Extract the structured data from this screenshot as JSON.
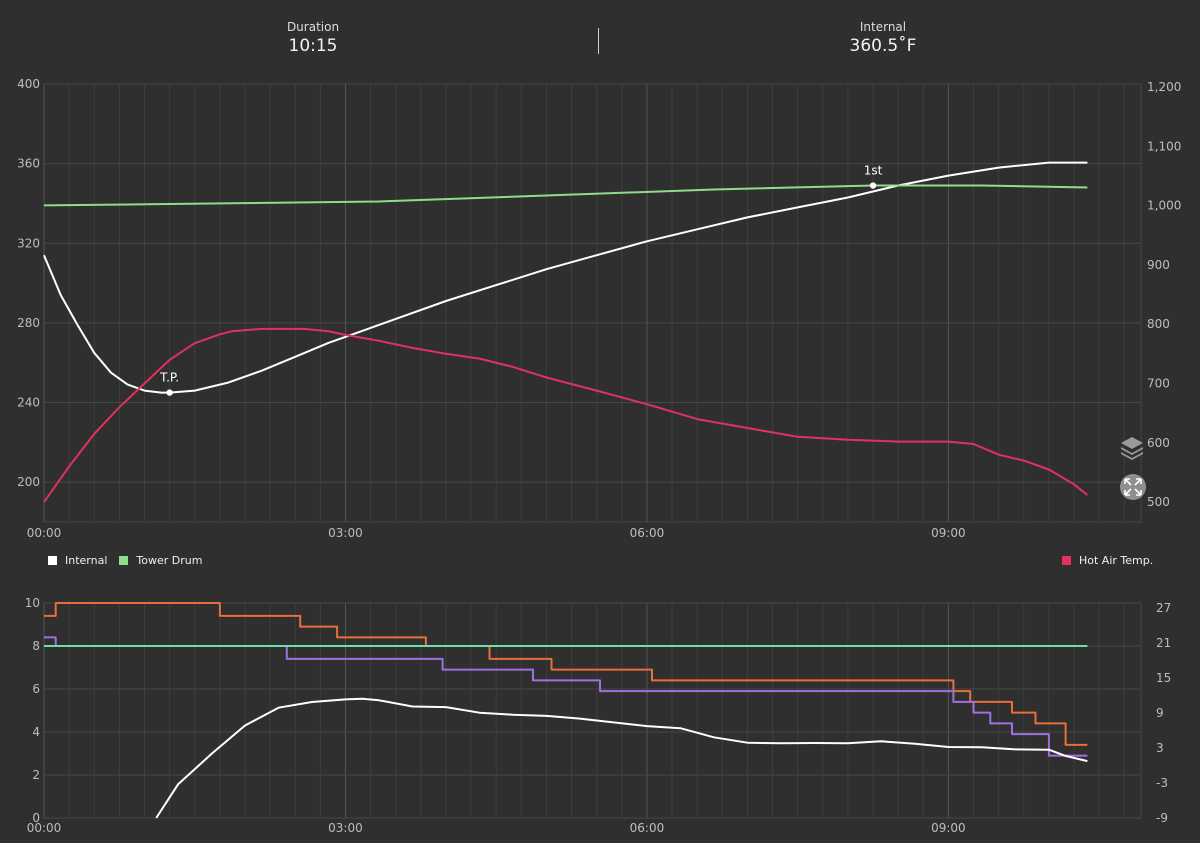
{
  "header": {
    "duration_label": "Duration",
    "duration_value": "10:15",
    "internal_label": "Internal",
    "internal_value": "360.5˚F"
  },
  "controls": {
    "layers_icon": "layers-icon",
    "expand_icon": "expand-icon"
  },
  "chart_data": [
    {
      "type": "line",
      "x_unit": "seconds",
      "x_ticks": [
        "00:00",
        "03:00",
        "06:00",
        "09:00"
      ],
      "xlim": [
        0,
        655
      ],
      "y_left": {
        "ticks": [
          "200",
          "240",
          "280",
          "320",
          "360",
          "400"
        ],
        "ylim": [
          180,
          400
        ]
      },
      "y_right": {
        "ticks": [
          "500",
          "600",
          "700",
          "800",
          "900",
          "1,000",
          "1,100",
          "1,200"
        ],
        "ylim": [
          490,
          1200
        ]
      },
      "grid": true,
      "legend_left": [
        {
          "name": "Internal",
          "color": "#ffffff"
        },
        {
          "name": "Tower Drum",
          "color": "#8fdc8a"
        }
      ],
      "legend_right": [
        {
          "name": "Hot Air Temp.",
          "color": "#e0325f"
        }
      ],
      "series": [
        {
          "name": "Internal",
          "axis": "left",
          "color": "#ffffff",
          "x": [
            0,
            10,
            20,
            30,
            40,
            50,
            60,
            70,
            75,
            90,
            110,
            130,
            150,
            170,
            190,
            210,
            240,
            270,
            300,
            330,
            360,
            390,
            420,
            450,
            480,
            495,
            510,
            540,
            570,
            600,
            623
          ],
          "y": [
            314,
            294,
            279,
            265,
            255,
            249,
            246,
            245,
            245,
            246,
            250,
            256,
            263,
            270,
            276,
            282,
            291,
            299,
            307,
            314,
            321,
            327,
            333,
            338,
            343,
            346,
            349,
            354,
            358,
            360.5,
            360.5
          ]
        },
        {
          "name": "Tower Drum",
          "axis": "left",
          "color": "#8fdc8a",
          "x": [
            0,
            100,
            200,
            300,
            400,
            495,
            560,
            623
          ],
          "y": [
            339,
            340,
            341,
            344,
            347,
            349,
            349,
            348
          ]
        },
        {
          "name": "Hot Air Temp.",
          "axis": "right",
          "color": "#e0325f",
          "x": [
            0,
            15,
            30,
            45,
            60,
            75,
            90,
            105,
            112,
            130,
            155,
            170,
            180,
            200,
            220,
            240,
            260,
            280,
            300,
            330,
            360,
            390,
            420,
            450,
            480,
            510,
            540,
            555,
            570,
            585,
            600,
            615,
            623
          ],
          "y": [
            500,
            560,
            615,
            660,
            700,
            740,
            768,
            783,
            788,
            792,
            792,
            788,
            782,
            772,
            760,
            750,
            742,
            728,
            710,
            688,
            665,
            640,
            625,
            610,
            605,
            602,
            602,
            598,
            580,
            570,
            555,
            530,
            512
          ]
        }
      ],
      "annotations": [
        {
          "label": "T.P.",
          "x": 75,
          "y": 245
        },
        {
          "label": "1st",
          "x": 495,
          "y": 349
        }
      ]
    },
    {
      "type": "line",
      "x_unit": "seconds",
      "x_ticks": [
        "00:00",
        "03:00",
        "06:00",
        "09:00"
      ],
      "xlim": [
        0,
        655
      ],
      "y_left": {
        "ticks": [
          "0",
          "2",
          "4",
          "6",
          "8",
          "10"
        ],
        "ylim": [
          0,
          10
        ]
      },
      "y_right": {
        "ticks": [
          "-9",
          "-3",
          "3",
          "9",
          "15",
          "21",
          "27"
        ],
        "ylim": [
          -9,
          27
        ]
      },
      "grid": true,
      "series": [
        {
          "name": "orange-step",
          "axis": "left",
          "color": "#e86e3a",
          "step": true,
          "x": [
            0,
            7,
            105,
            153,
            175,
            228,
            266,
            303,
            363,
            543,
            553,
            578,
            592,
            610,
            623
          ],
          "y": [
            9.4,
            10,
            9.4,
            8.9,
            8.4,
            8,
            7.4,
            6.9,
            6.4,
            5.9,
            5.4,
            4.9,
            4.4,
            3.4,
            3.4
          ]
        },
        {
          "name": "purple-step",
          "axis": "left",
          "color": "#a070e0",
          "step": true,
          "x": [
            0,
            7,
            145,
            238,
            292,
            332,
            543,
            555,
            565,
            578,
            600,
            623
          ],
          "y": [
            8.4,
            8,
            7.4,
            6.9,
            6.4,
            5.9,
            5.4,
            4.9,
            4.4,
            3.9,
            2.9,
            2.9
          ]
        },
        {
          "name": "green-flat",
          "axis": "left",
          "color": "#6fe0a8",
          "x": [
            0,
            623
          ],
          "y": [
            8,
            8
          ]
        },
        {
          "name": "white-noisy",
          "axis": "right",
          "color": "#ffffff",
          "x": [
            67,
            80,
            100,
            120,
            140,
            160,
            180,
            190,
            200,
            220,
            240,
            260,
            280,
            300,
            320,
            340,
            360,
            380,
            400,
            420,
            440,
            460,
            480,
            500,
            520,
            540,
            560,
            580,
            600,
            610,
            623
          ],
          "y": [
            -9,
            -3,
            2,
            7,
            10,
            11,
            11.5,
            11.5,
            11,
            10,
            10,
            9,
            8.5,
            8.5,
            8,
            7.5,
            7,
            6.5,
            5,
            4,
            4,
            4,
            4,
            4,
            3.5,
            3,
            3,
            2.5,
            2.5,
            1.5,
            1
          ]
        }
      ]
    }
  ]
}
